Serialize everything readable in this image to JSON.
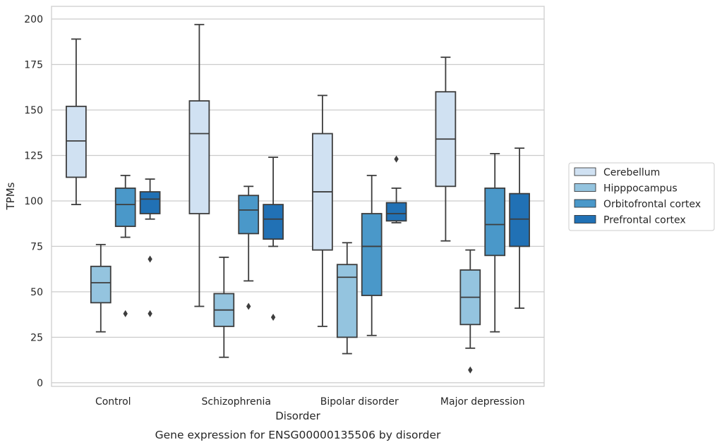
{
  "chart_data": {
    "type": "box",
    "title": "",
    "caption": "Gene expression for ENSG00000135506 by disorder",
    "xlabel": "Disorder",
    "ylabel": "TPMs",
    "ylim": [
      -2,
      207
    ],
    "yticks": [
      0,
      25,
      50,
      75,
      100,
      125,
      150,
      175,
      200
    ],
    "grid": "horizontal",
    "legend_position": "right",
    "categories": [
      "Control",
      "Schizophrenia",
      "Bipolar disorder",
      "Major depression"
    ],
    "series": [
      {
        "name": "Cerebellum",
        "color": "#d0e1f2",
        "boxes": [
          {
            "whislo": 98,
            "q1": 113,
            "med": 133,
            "q3": 152,
            "whishi": 189,
            "fliers": []
          },
          {
            "whislo": 42,
            "q1": 93,
            "med": 137,
            "q3": 155,
            "whishi": 197,
            "fliers": []
          },
          {
            "whislo": 31,
            "q1": 73,
            "med": 105,
            "q3": 137,
            "whishi": 158,
            "fliers": []
          },
          {
            "whislo": 78,
            "q1": 108,
            "med": 134,
            "q3": 160,
            "whishi": 179,
            "fliers": []
          }
        ]
      },
      {
        "name": "Hipppocampus",
        "color": "#94c4df",
        "boxes": [
          {
            "whislo": 28,
            "q1": 44,
            "med": 55,
            "q3": 64,
            "whishi": 76,
            "fliers": []
          },
          {
            "whislo": 14,
            "q1": 31,
            "med": 40,
            "q3": 49,
            "whishi": 69,
            "fliers": []
          },
          {
            "whislo": 16,
            "q1": 25,
            "med": 58,
            "q3": 65,
            "whishi": 77,
            "fliers": []
          },
          {
            "whislo": 19,
            "q1": 32,
            "med": 47,
            "q3": 62,
            "whishi": 73,
            "fliers": [
              7
            ]
          }
        ]
      },
      {
        "name": "Orbitofrontal cortex",
        "color": "#4a98c9",
        "boxes": [
          {
            "whislo": 80,
            "q1": 86,
            "med": 98,
            "q3": 107,
            "whishi": 114,
            "fliers": [
              38
            ]
          },
          {
            "whislo": 56,
            "q1": 82,
            "med": 95,
            "q3": 103,
            "whishi": 108,
            "fliers": [
              42
            ]
          },
          {
            "whislo": 26,
            "q1": 48,
            "med": 75,
            "q3": 93,
            "whishi": 114,
            "fliers": []
          },
          {
            "whislo": 28,
            "q1": 70,
            "med": 87,
            "q3": 107,
            "whishi": 126,
            "fliers": []
          }
        ]
      },
      {
        "name": "Prefrontal cortex",
        "color": "#2171b5",
        "boxes": [
          {
            "whislo": 90,
            "q1": 93,
            "med": 101,
            "q3": 105,
            "whishi": 112,
            "fliers": [
              68,
              38
            ]
          },
          {
            "whislo": 75,
            "q1": 79,
            "med": 90,
            "q3": 98,
            "whishi": 124,
            "fliers": [
              36
            ]
          },
          {
            "whislo": 88,
            "q1": 89,
            "med": 93,
            "q3": 99,
            "whishi": 107,
            "fliers": [
              123
            ]
          },
          {
            "whislo": 41,
            "q1": 75,
            "med": 90,
            "q3": 104,
            "whishi": 129,
            "fliers": []
          }
        ]
      }
    ]
  },
  "theme": {
    "grid_color": "#cccccc",
    "line_color": "#3d3d3d",
    "text_color": "#262626",
    "background": "#ffffff"
  }
}
